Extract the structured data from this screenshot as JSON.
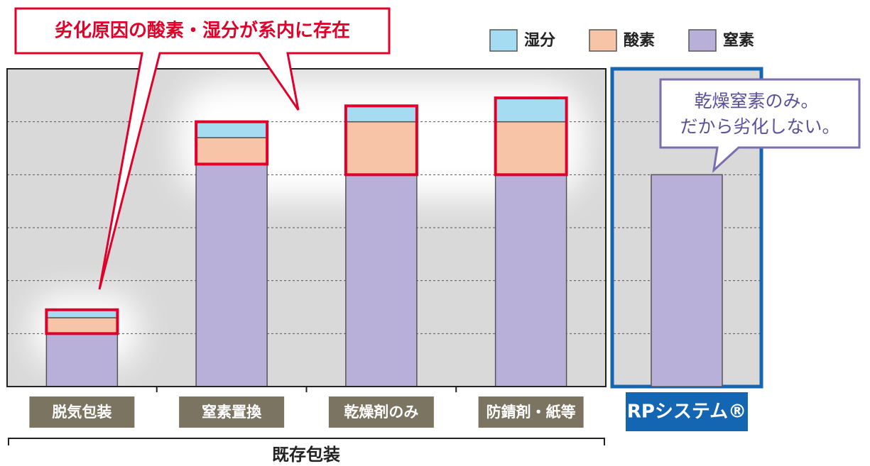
{
  "chart_data": {
    "type": "stacked_bar",
    "categories": [
      "脱気包装",
      "窒素置換",
      "乾燥剤のみ",
      "防錆剤・紙等",
      "RPシステム®"
    ],
    "group_label": "既存包装",
    "series": [
      {
        "name": "湿分",
        "color": "#a6dcf2",
        "values": [
          0.15,
          0.3,
          0.3,
          0.45,
          0
        ]
      },
      {
        "name": "酸素",
        "color": "#f7c4a8",
        "values": [
          0.3,
          0.5,
          1.0,
          1.0,
          0
        ]
      },
      {
        "name": "窒素",
        "color": "#b8b0d8",
        "values": [
          1.0,
          4.2,
          4.0,
          4.0,
          4.0
        ]
      }
    ],
    "ylim": [
      0,
      6
    ],
    "yticks": [
      1,
      2,
      3,
      4,
      5
    ],
    "grid": true,
    "legend": "top-right",
    "annotations": [
      "劣化原因の酸素・湿分が系内に存在",
      "乾燥窒素のみ。",
      "だから劣化しない。"
    ]
  }
}
